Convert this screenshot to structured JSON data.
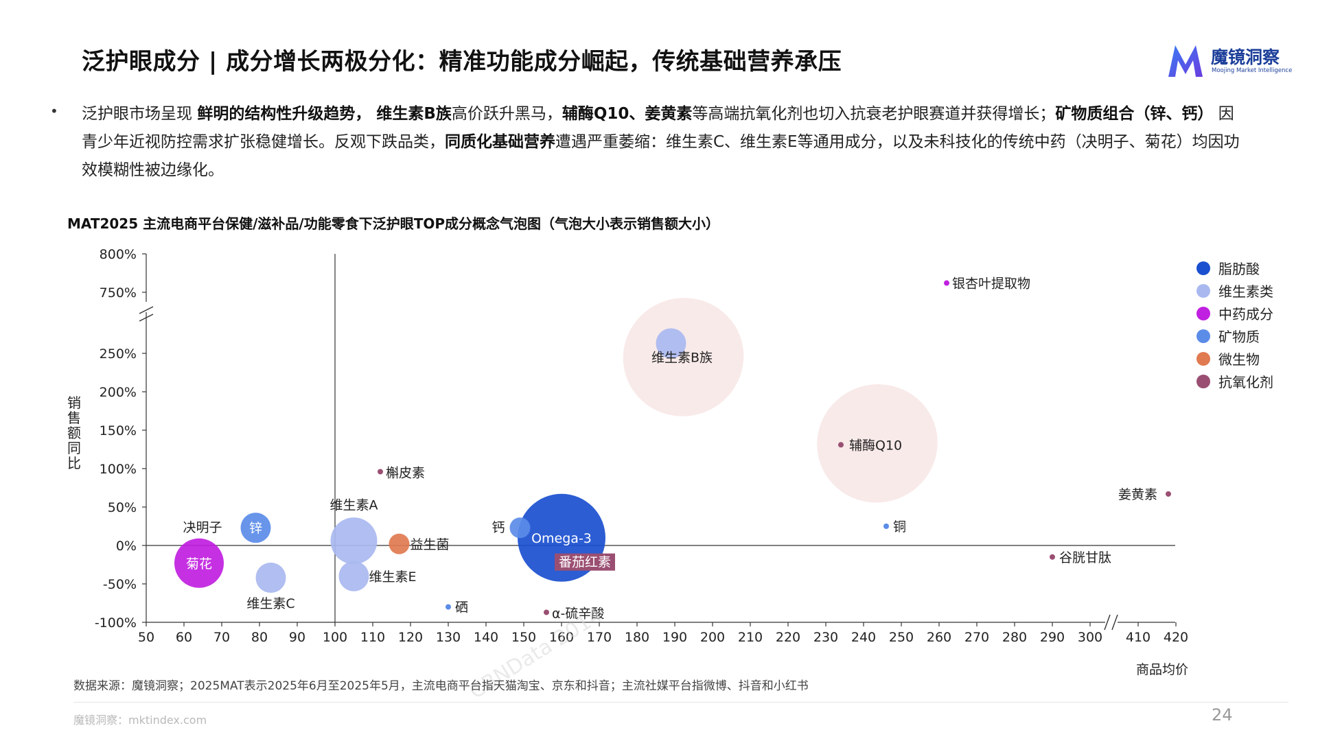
{
  "header": {
    "title": "泛护眼成分 | 成分增长两极分化：精准功能成分崛起，传统基础营养承压",
    "logo_name": "魔镜洞察",
    "logo_sub": "Moojing Market Intelligence"
  },
  "summary": {
    "bullet": "•",
    "segments": [
      {
        "text": "泛护眼市场呈现 ",
        "bold": false
      },
      {
        "text": "鲜明的结构性升级趋势， 维生素B族",
        "bold": true
      },
      {
        "text": "高价跃升黑马，",
        "bold": false
      },
      {
        "text": "辅酶Q10、姜黄素",
        "bold": true
      },
      {
        "text": "等高端抗氧化剂也切入抗衰老护眼赛道并获得增长；",
        "bold": false
      },
      {
        "text": "矿物质组合（锌、钙）",
        "bold": true
      },
      {
        "text": " 因青少年近视防控需求扩张稳健增长。反观下跌品类，",
        "bold": false
      },
      {
        "text": "同质化基础营养",
        "bold": true
      },
      {
        "text": "遭遇严重萎缩：维生素C、维生素E等通用成分，以及未科技化的传统中药（决明子、菊花）均因功效模糊性被边缘化。",
        "bold": false
      }
    ]
  },
  "chart_title": "MAT2025 主流电商平台保健/滋补品/功能零食下泛护眼TOP成分概念气泡图（气泡大小表示销售额大小）",
  "source": "数据来源：魔镜洞察；2025MAT表示2025年6月至2025年5月，主流电商平台指天猫淘宝、京东和抖音；主流社媒平台指微博、抖音和小红书",
  "footer": {
    "site": "魔镜洞察：mktindex.com",
    "page_number": "24"
  },
  "watermark": "CBNData 2014",
  "legend": [
    {
      "name": "脂肪酸",
      "color": "#1a4fcf"
    },
    {
      "name": "维生素类",
      "color": "#a9b9f0"
    },
    {
      "name": "中药成分",
      "color": "#c020e0"
    },
    {
      "name": "矿物质",
      "color": "#5b8ce8"
    },
    {
      "name": "微生物",
      "color": "#e07a50"
    },
    {
      "name": "抗氧化剂",
      "color": "#9a4f72"
    }
  ],
  "chart_data": {
    "type": "scatter",
    "xlabel": "商品均价",
    "ylabel": "销售额同比",
    "x_ticks": [
      "50",
      "60",
      "70",
      "80",
      "90",
      "100",
      "110",
      "120",
      "130",
      "140",
      "150",
      "160",
      "170",
      "180",
      "190",
      "200",
      "210",
      "220",
      "230",
      "240",
      "250",
      "260",
      "270",
      "280",
      "290",
      "300",
      "410",
      "420"
    ],
    "y_ticks": [
      "800%",
      "750%",
      "250%",
      "200%",
      "150%",
      "100%",
      "50%",
      "0%",
      "-50%",
      "-100%"
    ],
    "x_break": [
      300,
      410
    ],
    "y_break": [
      250,
      750
    ],
    "xlim": [
      50,
      420
    ],
    "ylim": [
      -100,
      800
    ],
    "crosshair": {
      "x": 100,
      "y": 0
    },
    "highlight_ellipses": [
      "维生素B族",
      "辅酶Q10"
    ],
    "points": [
      {
        "name": "菊花",
        "category": "中药成分",
        "x": 64,
        "y": -23,
        "size": "large"
      },
      {
        "name": "决明子",
        "category": "中药成分",
        "x": 64,
        "y": -23,
        "size": "none"
      },
      {
        "name": "锌",
        "category": "矿物质",
        "x": 79,
        "y": 23,
        "size": "small"
      },
      {
        "name": "维生素C",
        "category": "维生素类",
        "x": 83,
        "y": -42,
        "size": "small"
      },
      {
        "name": "维生素A",
        "category": "维生素类",
        "x": 105,
        "y": 6,
        "size": "medium"
      },
      {
        "name": "维生素E",
        "category": "维生素类",
        "x": 105,
        "y": -40,
        "size": "small"
      },
      {
        "name": "益生菌",
        "category": "微生物",
        "x": 117,
        "y": 2,
        "size": "tiny"
      },
      {
        "name": "槲皮素",
        "category": "抗氧化剂",
        "x": 112,
        "y": 96,
        "size": "dot"
      },
      {
        "name": "硒",
        "category": "矿物质",
        "x": 130,
        "y": -80,
        "size": "dot"
      },
      {
        "name": "钙",
        "category": "矿物质",
        "x": 149,
        "y": 23,
        "size": "tiny"
      },
      {
        "name": "Omega-3",
        "category": "脂肪酸",
        "x": 160,
        "y": 10,
        "size": "xlarge"
      },
      {
        "name": "番茄红素",
        "category": "抗氧化剂",
        "x": 160,
        "y": -14,
        "size": "none"
      },
      {
        "name": "α-硫辛酸",
        "category": "抗氧化剂",
        "x": 156,
        "y": -87,
        "size": "dot"
      },
      {
        "name": "维生素B族",
        "category": "维生素类",
        "x": 189,
        "y": 263,
        "size": "small"
      },
      {
        "name": "辅酶Q10",
        "category": "抗氧化剂",
        "x": 234,
        "y": 131,
        "size": "dot"
      },
      {
        "name": "铜",
        "category": "矿物质",
        "x": 246,
        "y": 25,
        "size": "dot"
      },
      {
        "name": "银杏叶提取物",
        "category": "中药成分",
        "x": 262,
        "y": 762,
        "size": "dot"
      },
      {
        "name": "谷胱甘肽",
        "category": "抗氧化剂",
        "x": 290,
        "y": -15,
        "size": "dot"
      },
      {
        "name": "姜黄素",
        "category": "抗氧化剂",
        "x": 418,
        "y": 67,
        "size": "dot"
      }
    ]
  }
}
